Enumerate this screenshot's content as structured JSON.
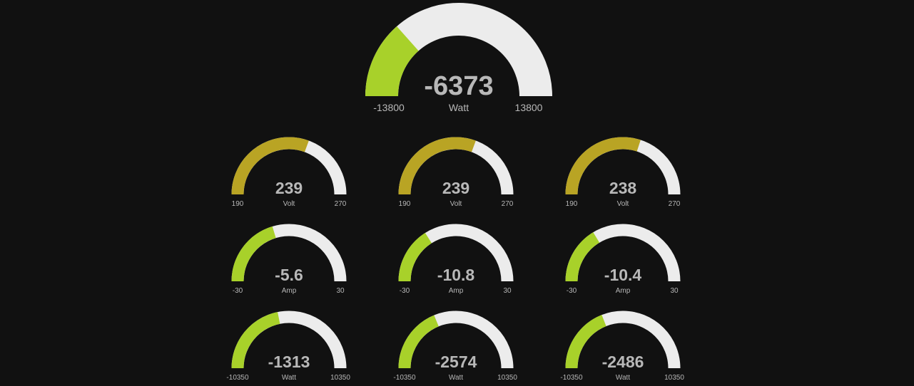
{
  "colors": {
    "background": "#111111",
    "track": "#ececec",
    "green": "#a8d12a",
    "olive": "#b9a424",
    "text": "#b8b8b8"
  },
  "main_gauge": {
    "value": -6373,
    "value_label": "-6373",
    "unit": "Watt",
    "min": -13800,
    "max": 13800,
    "min_label": "-13800",
    "max_label": "13800",
    "color": "#a8d12a"
  },
  "phase_gauges": [
    {
      "voltage": {
        "value": 239,
        "value_label": "239",
        "unit": "Volt",
        "min": 190,
        "max": 270,
        "min_label": "190",
        "max_label": "270",
        "color": "#b9a424"
      },
      "current": {
        "value": -5.6,
        "value_label": "-5.6",
        "unit": "Amp",
        "min": -30,
        "max": 30,
        "min_label": "-30",
        "max_label": "30",
        "color": "#a8d12a"
      },
      "power": {
        "value": -1313,
        "value_label": "-1313",
        "unit": "Watt",
        "min": -10350,
        "max": 10350,
        "min_label": "-10350",
        "max_label": "10350",
        "color": "#a8d12a"
      }
    },
    {
      "voltage": {
        "value": 239,
        "value_label": "239",
        "unit": "Volt",
        "min": 190,
        "max": 270,
        "min_label": "190",
        "max_label": "270",
        "color": "#b9a424"
      },
      "current": {
        "value": -10.8,
        "value_label": "-10.8",
        "unit": "Amp",
        "min": -30,
        "max": 30,
        "min_label": "-30",
        "max_label": "30",
        "color": "#a8d12a"
      },
      "power": {
        "value": -2574,
        "value_label": "-2574",
        "unit": "Watt",
        "min": -10350,
        "max": 10350,
        "min_label": "-10350",
        "max_label": "10350",
        "color": "#a8d12a"
      }
    },
    {
      "voltage": {
        "value": 238,
        "value_label": "238",
        "unit": "Volt",
        "min": 190,
        "max": 270,
        "min_label": "190",
        "max_label": "270",
        "color": "#b9a424"
      },
      "current": {
        "value": -10.4,
        "value_label": "-10.4",
        "unit": "Amp",
        "min": -30,
        "max": 30,
        "min_label": "-30",
        "max_label": "30",
        "color": "#a8d12a"
      },
      "power": {
        "value": -2486,
        "value_label": "-2486",
        "unit": "Watt",
        "min": -10350,
        "max": 10350,
        "min_label": "-10350",
        "max_label": "10350",
        "color": "#a8d12a"
      }
    }
  ]
}
